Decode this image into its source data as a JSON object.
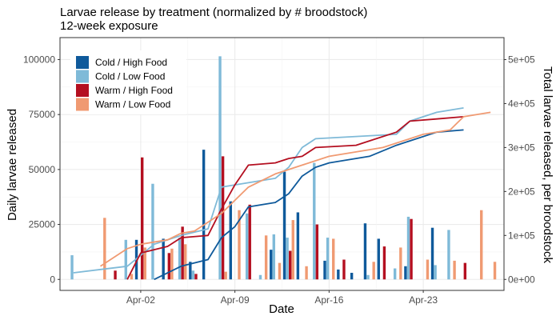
{
  "chart_data": {
    "type": "bar+line",
    "title": "Larvae release by treatment (normalized by # broodstock)",
    "subtitle": "12-week exposure",
    "xlabel": "Date",
    "ylabel": "Daily larvae released",
    "y2label": "Total larvae released, per broodstock",
    "x_range": [
      "2024-03-27",
      "2024-04-29"
    ],
    "x_ticks": [
      {
        "date": "2024-04-02",
        "label": "Apr-02"
      },
      {
        "date": "2024-04-09",
        "label": "Apr-09"
      },
      {
        "date": "2024-04-16",
        "label": "Apr-16"
      },
      {
        "date": "2024-04-23",
        "label": "Apr-23"
      }
    ],
    "ylim": [
      -5000,
      110000
    ],
    "y_ticks": [
      {
        "value": 0,
        "label": "0"
      },
      {
        "value": 25000,
        "label": "25000"
      },
      {
        "value": 50000,
        "label": "50000"
      },
      {
        "value": 75000,
        "label": "75000"
      },
      {
        "value": 100000,
        "label": "100000"
      }
    ],
    "y2_ticks": [
      {
        "value": 0,
        "label": "0e+00"
      },
      {
        "value": 100000,
        "label": "1e+05"
      },
      {
        "value": 200000,
        "label": "2e+05"
      },
      {
        "value": 300000,
        "label": "3e+05"
      },
      {
        "value": 400000,
        "label": "4e+05"
      },
      {
        "value": 500000,
        "label": "5e+05"
      }
    ],
    "y2_per_y": 5,
    "grid": true,
    "legend_position": "top-left",
    "series": [
      {
        "name": "Cold / High Food",
        "color": "#0f5a9b",
        "bars": [
          {
            "date": "2024-04-02",
            "value": 18000
          },
          {
            "date": "2024-04-04",
            "value": 18500
          },
          {
            "date": "2024-04-06",
            "value": 8000
          },
          {
            "date": "2024-04-07",
            "value": 59000
          },
          {
            "date": "2024-04-09",
            "value": 35500
          },
          {
            "date": "2024-04-12",
            "value": 13500
          },
          {
            "date": "2024-04-13",
            "value": 49000
          },
          {
            "date": "2024-04-14",
            "value": 30500
          },
          {
            "date": "2024-04-16",
            "value": 8500
          },
          {
            "date": "2024-04-17",
            "value": 4500
          },
          {
            "date": "2024-04-18",
            "value": 3000
          },
          {
            "date": "2024-04-19",
            "value": 25500
          },
          {
            "date": "2024-04-20",
            "value": 18500
          },
          {
            "date": "2024-04-22",
            "value": 6000
          },
          {
            "date": "2024-04-24",
            "value": 23500
          }
        ],
        "cumulative": [
          {
            "date": "2024-04-03",
            "value": 0
          },
          {
            "date": "2024-04-05",
            "value": 30000
          },
          {
            "date": "2024-04-07",
            "value": 45000
          },
          {
            "date": "2024-04-08",
            "value": 95000
          },
          {
            "date": "2024-04-09",
            "value": 120000
          },
          {
            "date": "2024-04-10",
            "value": 165000
          },
          {
            "date": "2024-04-12",
            "value": 175000
          },
          {
            "date": "2024-04-13",
            "value": 195000
          },
          {
            "date": "2024-04-14",
            "value": 235000
          },
          {
            "date": "2024-04-15",
            "value": 255000
          },
          {
            "date": "2024-04-16",
            "value": 265000
          },
          {
            "date": "2024-04-19",
            "value": 280000
          },
          {
            "date": "2024-04-21",
            "value": 305000
          },
          {
            "date": "2024-04-22",
            "value": 315000
          },
          {
            "date": "2024-04-24",
            "value": 335000
          },
          {
            "date": "2024-04-26",
            "value": 340000
          }
        ]
      },
      {
        "name": "Cold / Low Food",
        "color": "#7fbad8",
        "bars": [
          {
            "date": "2024-03-28",
            "value": 11000
          },
          {
            "date": "2024-04-01",
            "value": 18000
          },
          {
            "date": "2024-04-03",
            "value": 43500
          },
          {
            "date": "2024-04-05",
            "value": 19000
          },
          {
            "date": "2024-04-06",
            "value": 4000
          },
          {
            "date": "2024-04-08",
            "value": 101500
          },
          {
            "date": "2024-04-10",
            "value": 30000
          },
          {
            "date": "2024-04-11",
            "value": 2000
          },
          {
            "date": "2024-04-12",
            "value": 20500
          },
          {
            "date": "2024-04-13",
            "value": 19000
          },
          {
            "date": "2024-04-15",
            "value": 53000
          },
          {
            "date": "2024-04-16",
            "value": 19000
          },
          {
            "date": "2024-04-19",
            "value": 2000
          },
          {
            "date": "2024-04-21",
            "value": 5000
          },
          {
            "date": "2024-04-22",
            "value": 28500
          },
          {
            "date": "2024-04-24",
            "value": 6500
          },
          {
            "date": "2024-04-25",
            "value": 22500
          }
        ],
        "cumulative": [
          {
            "date": "2024-03-28",
            "value": 15000
          },
          {
            "date": "2024-04-01",
            "value": 30000
          },
          {
            "date": "2024-04-03",
            "value": 80000
          },
          {
            "date": "2024-04-05",
            "value": 100000
          },
          {
            "date": "2024-04-07",
            "value": 115000
          },
          {
            "date": "2024-04-08",
            "value": 210000
          },
          {
            "date": "2024-04-10",
            "value": 220000
          },
          {
            "date": "2024-04-12",
            "value": 230000
          },
          {
            "date": "2024-04-13",
            "value": 255000
          },
          {
            "date": "2024-04-14",
            "value": 300000
          },
          {
            "date": "2024-04-15",
            "value": 320000
          },
          {
            "date": "2024-04-21",
            "value": 330000
          },
          {
            "date": "2024-04-22",
            "value": 360000
          },
          {
            "date": "2024-04-23",
            "value": 370000
          },
          {
            "date": "2024-04-24",
            "value": 380000
          },
          {
            "date": "2024-04-26",
            "value": 390000
          }
        ]
      },
      {
        "name": "Warm / High Food",
        "color": "#b40f20",
        "bars": [
          {
            "date": "2024-03-31",
            "value": 4000
          },
          {
            "date": "2024-04-02",
            "value": 55500
          },
          {
            "date": "2024-04-04",
            "value": 12000
          },
          {
            "date": "2024-04-05",
            "value": 24000
          },
          {
            "date": "2024-04-06",
            "value": 2500
          },
          {
            "date": "2024-04-08",
            "value": 56000
          },
          {
            "date": "2024-04-10",
            "value": 34000
          },
          {
            "date": "2024-04-13",
            "value": 13000
          },
          {
            "date": "2024-04-15",
            "value": 25000
          },
          {
            "date": "2024-04-17",
            "value": 9000
          },
          {
            "date": "2024-04-20",
            "value": 15000
          },
          {
            "date": "2024-04-22",
            "value": 27500
          },
          {
            "date": "2024-04-26",
            "value": 7500
          }
        ],
        "cumulative": [
          {
            "date": "2024-04-01",
            "value": 0
          },
          {
            "date": "2024-04-02",
            "value": 60000
          },
          {
            "date": "2024-04-04",
            "value": 75000
          },
          {
            "date": "2024-04-05",
            "value": 95000
          },
          {
            "date": "2024-04-07",
            "value": 100000
          },
          {
            "date": "2024-04-08",
            "value": 160000
          },
          {
            "date": "2024-04-09",
            "value": 215000
          },
          {
            "date": "2024-04-10",
            "value": 260000
          },
          {
            "date": "2024-04-12",
            "value": 265000
          },
          {
            "date": "2024-04-13",
            "value": 275000
          },
          {
            "date": "2024-04-14",
            "value": 280000
          },
          {
            "date": "2024-04-15",
            "value": 300000
          },
          {
            "date": "2024-04-18",
            "value": 305000
          },
          {
            "date": "2024-04-19",
            "value": 315000
          },
          {
            "date": "2024-04-21",
            "value": 335000
          },
          {
            "date": "2024-04-22",
            "value": 360000
          },
          {
            "date": "2024-04-24",
            "value": 365000
          },
          {
            "date": "2024-04-26",
            "value": 370000
          }
        ]
      },
      {
        "name": "Warm / Low Food",
        "color": "#f09a72",
        "bars": [
          {
            "date": "2024-03-30",
            "value": 28000
          },
          {
            "date": "2024-04-01",
            "value": 2500
          },
          {
            "date": "2024-04-02",
            "value": 14500
          },
          {
            "date": "2024-04-04",
            "value": 14000
          },
          {
            "date": "2024-04-05",
            "value": 16000
          },
          {
            "date": "2024-04-08",
            "value": 3500
          },
          {
            "date": "2024-04-09",
            "value": 31500
          },
          {
            "date": "2024-04-11",
            "value": 20000
          },
          {
            "date": "2024-04-12",
            "value": 7500
          },
          {
            "date": "2024-04-13",
            "value": 27000
          },
          {
            "date": "2024-04-14",
            "value": 6000
          },
          {
            "date": "2024-04-16",
            "value": 18500
          },
          {
            "date": "2024-04-19",
            "value": 8000
          },
          {
            "date": "2024-04-21",
            "value": 14500
          },
          {
            "date": "2024-04-23",
            "value": 9000
          },
          {
            "date": "2024-04-25",
            "value": 8500
          },
          {
            "date": "2024-04-27",
            "value": 31500
          },
          {
            "date": "2024-04-28",
            "value": 8000
          }
        ],
        "cumulative": [
          {
            "date": "2024-03-30",
            "value": 30000
          },
          {
            "date": "2024-04-01",
            "value": 70000
          },
          {
            "date": "2024-04-02",
            "value": 80000
          },
          {
            "date": "2024-04-04",
            "value": 90000
          },
          {
            "date": "2024-04-05",
            "value": 105000
          },
          {
            "date": "2024-04-06",
            "value": 110000
          },
          {
            "date": "2024-04-08",
            "value": 150000
          },
          {
            "date": "2024-04-10",
            "value": 210000
          },
          {
            "date": "2024-04-12",
            "value": 240000
          },
          {
            "date": "2024-04-14",
            "value": 260000
          },
          {
            "date": "2024-04-16",
            "value": 280000
          },
          {
            "date": "2024-04-20",
            "value": 300000
          },
          {
            "date": "2024-04-23",
            "value": 330000
          },
          {
            "date": "2024-04-25",
            "value": 340000
          },
          {
            "date": "2024-04-26",
            "value": 370000
          },
          {
            "date": "2024-04-28",
            "value": 380000
          }
        ]
      }
    ]
  }
}
